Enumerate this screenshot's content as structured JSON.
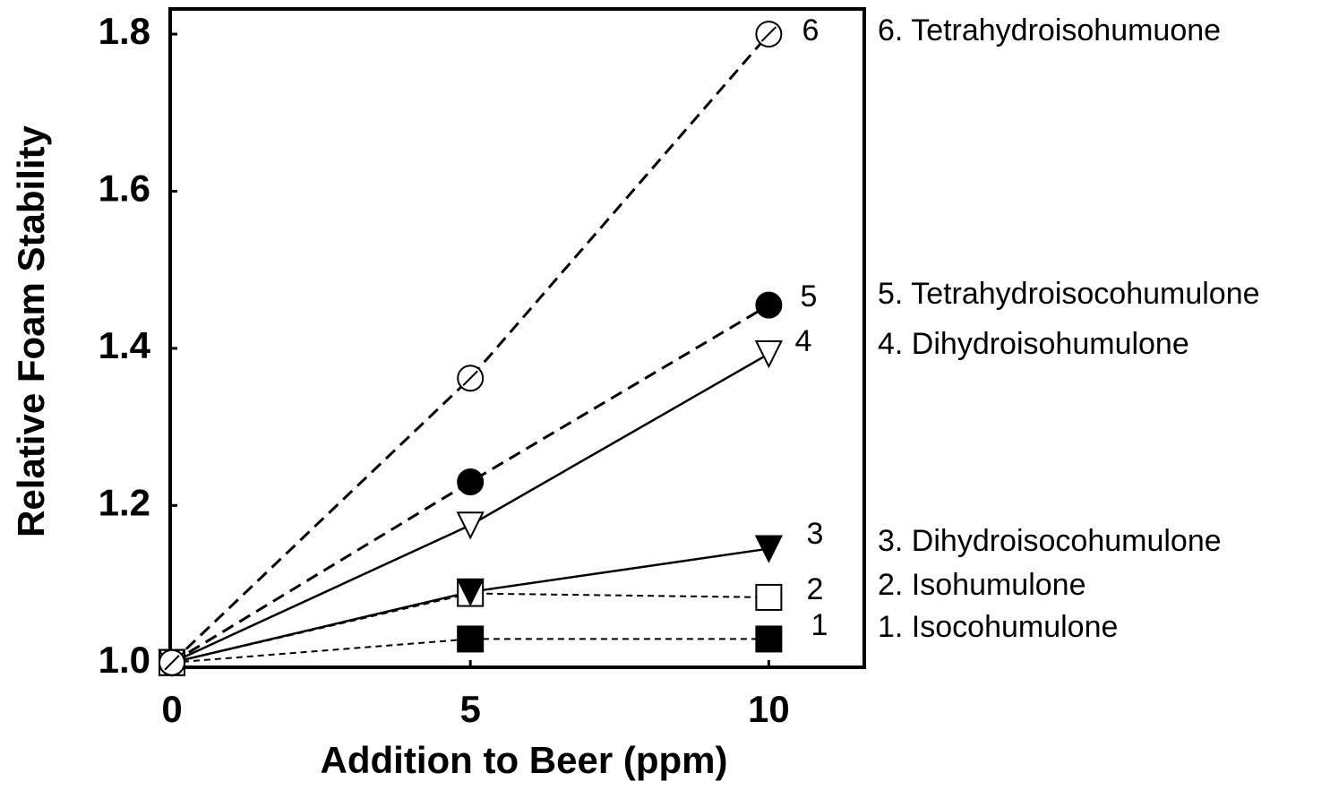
{
  "chart_data": {
    "type": "line",
    "xlabel": "Addition to Beer (ppm)",
    "ylabel": "Relative Foam Stability",
    "x": [
      0,
      5,
      10
    ],
    "xlim": [
      -0.03,
      11.6
    ],
    "xticks": [
      0,
      5,
      10
    ],
    "ylim": [
      0.994,
      1.832
    ],
    "yticks": [
      {
        "value": 1.0,
        "label": "1.0"
      },
      1.2,
      1.4,
      1.6,
      1.8
    ],
    "series": [
      {
        "label": "1",
        "name": "1. Isocohumulone",
        "color": "#000000",
        "marker": "square-filled",
        "line_style": "fine-dashed",
        "values": [
          1.0,
          1.03,
          1.03
        ]
      },
      {
        "label": "2",
        "name": "2. Isohumulone",
        "color": "#000000",
        "marker": "square-open",
        "line_style": "fine-dashed",
        "values": [
          1.0,
          1.088,
          1.083
        ]
      },
      {
        "label": "3",
        "name": "3. Dihydroisocohumulone",
        "color": "#000000",
        "marker": "triangle-down-filled",
        "line_style": "solid",
        "values": [
          1.0,
          1.09,
          1.145
        ]
      },
      {
        "label": "4",
        "name": "4. Dihydroisohumulone",
        "color": "#000000",
        "marker": "triangle-down-open",
        "line_style": "solid",
        "values": [
          1.0,
          1.175,
          1.393
        ]
      },
      {
        "label": "5",
        "name": "5. Tetrahydroisocohumulone",
        "color": "#000000",
        "marker": "circle-filled",
        "line_style": "dashed",
        "values": [
          1.0,
          1.23,
          1.455
        ]
      },
      {
        "label": "6",
        "name": "6. Tetrahydroisohumuone",
        "color": "#000000",
        "marker": "circle-slashed",
        "line_style": "dashed",
        "values": [
          1.0,
          1.362,
          1.8
        ]
      }
    ]
  }
}
